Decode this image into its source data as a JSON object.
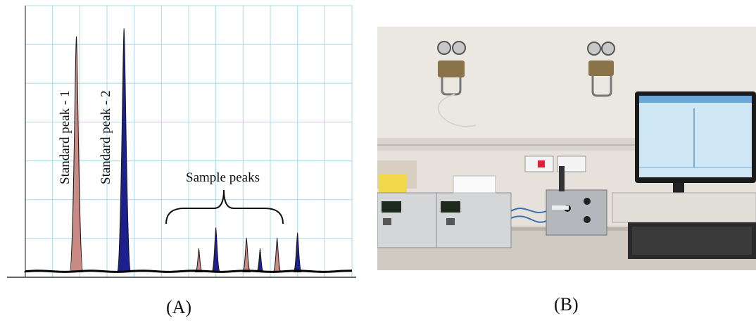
{
  "panels": {
    "a_label": "(A)",
    "b_label": "(B)"
  },
  "chart_data": {
    "type": "area",
    "annotations": {
      "standard_peak_1": "Standard peak - 1",
      "standard_peak_2": "Standard peak - 2",
      "sample_peaks": "Sample peaks"
    },
    "peaks": [
      {
        "label": "Standard peak - 1",
        "x": 0.75,
        "height": 0.92,
        "color": "#c98a84"
      },
      {
        "label": "Standard peak - 2",
        "x": 1.45,
        "height": 0.95,
        "color": "#1c1f8c"
      },
      {
        "label": "sample",
        "x": 2.55,
        "height": 0.11,
        "color": "#c98a84"
      },
      {
        "label": "sample",
        "x": 2.8,
        "height": 0.19,
        "color": "#1c1f8c"
      },
      {
        "label": "sample",
        "x": 3.25,
        "height": 0.15,
        "color": "#c98a84"
      },
      {
        "label": "sample",
        "x": 3.45,
        "height": 0.11,
        "color": "#1c1f8c"
      },
      {
        "label": "sample",
        "x": 3.7,
        "height": 0.15,
        "color": "#c98a84"
      },
      {
        "label": "sample",
        "x": 4.0,
        "height": 0.17,
        "color": "#1c1f8c"
      }
    ],
    "xlim": [
      0,
      4.8
    ],
    "ylim": [
      0,
      1
    ],
    "grid": true,
    "colors": {
      "standard_1": "#c98a84",
      "standard_2": "#1c1f8c",
      "grid": "#a8d8ea",
      "baseline": "#000000"
    }
  },
  "photo": {
    "colors": {
      "wall": "#e9e5de",
      "shelf": "#d8d4cc",
      "bench": "#cfcac2",
      "monitor_frame": "#1a1a1a",
      "monitor_screen": "#cfe6f5",
      "instrument": "#d4d6d8",
      "box": "#a9adb2"
    }
  }
}
